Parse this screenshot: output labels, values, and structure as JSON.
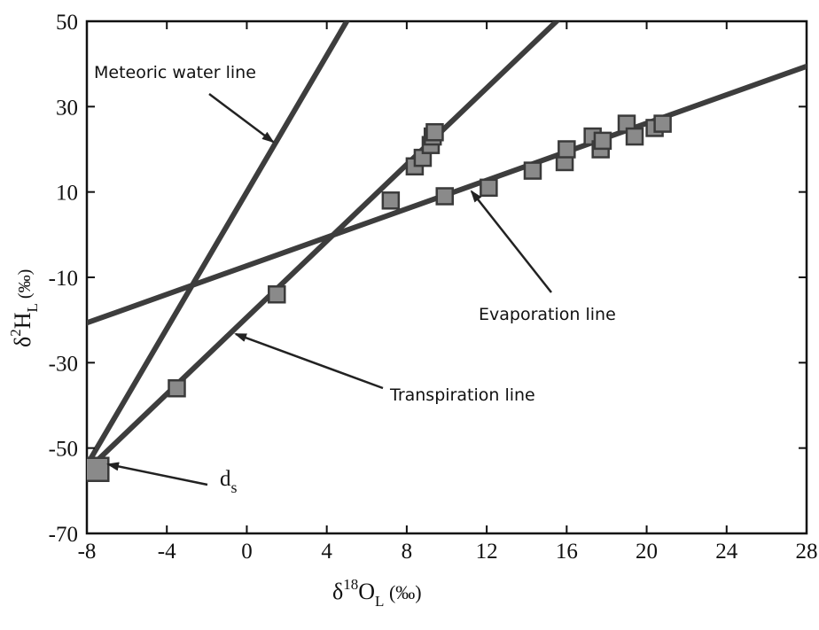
{
  "chart_data": {
    "type": "scatter",
    "title": "",
    "xlabel": {
      "base": "δ",
      "sup": "18",
      "main": "O",
      "sub": "L",
      "unit": " (‰)"
    },
    "ylabel": {
      "base": "δ",
      "sup": "2",
      "main": "H",
      "sub": "L",
      "unit": " (‰)"
    },
    "xlim": [
      -8,
      28
    ],
    "ylim": [
      -70,
      50
    ],
    "xticks": [
      -8,
      -4,
      0,
      4,
      8,
      12,
      16,
      20,
      24,
      28
    ],
    "yticks": [
      -70,
      -50,
      -30,
      -10,
      10,
      30,
      50
    ],
    "xtick_labels": [
      "-8",
      "-4",
      "0",
      "4",
      "8",
      "12",
      "16",
      "20",
      "24",
      "28"
    ],
    "ytick_labels": [
      "-70",
      "-50",
      "-30",
      "-10",
      "10",
      "30",
      "50"
    ],
    "grid": false,
    "lines": [
      {
        "name": "Meteoric water line",
        "slope": 8,
        "intercept": 10
      },
      {
        "name": "Transpiration line",
        "slope": 4.48,
        "intercept": -19.4
      },
      {
        "name": "Evaporation line",
        "slope": 1.67,
        "intercept": -7.3
      }
    ],
    "points": [
      {
        "x": -7.5,
        "y": -55,
        "big": true
      },
      {
        "x": -3.5,
        "y": -36
      },
      {
        "x": 1.5,
        "y": -14
      },
      {
        "x": 7.2,
        "y": 8
      },
      {
        "x": 8.4,
        "y": 16
      },
      {
        "x": 8.8,
        "y": 18
      },
      {
        "x": 9.2,
        "y": 21
      },
      {
        "x": 9.3,
        "y": 23
      },
      {
        "x": 9.4,
        "y": 24
      },
      {
        "x": 9.9,
        "y": 9
      },
      {
        "x": 12.1,
        "y": 11
      },
      {
        "x": 14.3,
        "y": 15
      },
      {
        "x": 15.9,
        "y": 17
      },
      {
        "x": 16.0,
        "y": 20
      },
      {
        "x": 17.3,
        "y": 23
      },
      {
        "x": 17.7,
        "y": 20
      },
      {
        "x": 17.8,
        "y": 22
      },
      {
        "x": 19.0,
        "y": 26
      },
      {
        "x": 19.4,
        "y": 23
      },
      {
        "x": 20.4,
        "y": 25
      },
      {
        "x": 20.8,
        "y": 26
      }
    ],
    "annotations": [
      {
        "text": "Meteoric water line",
        "sub": ""
      },
      {
        "text": "Transpiration line",
        "sub": ""
      },
      {
        "text": "Evaporation line",
        "sub": ""
      },
      {
        "text": "d",
        "sub": "s"
      }
    ],
    "colors": {
      "line": "#3d3d3d",
      "marker": "#8a8a8a",
      "marker_edge": "#3a3a3a",
      "text": "#111111"
    }
  }
}
